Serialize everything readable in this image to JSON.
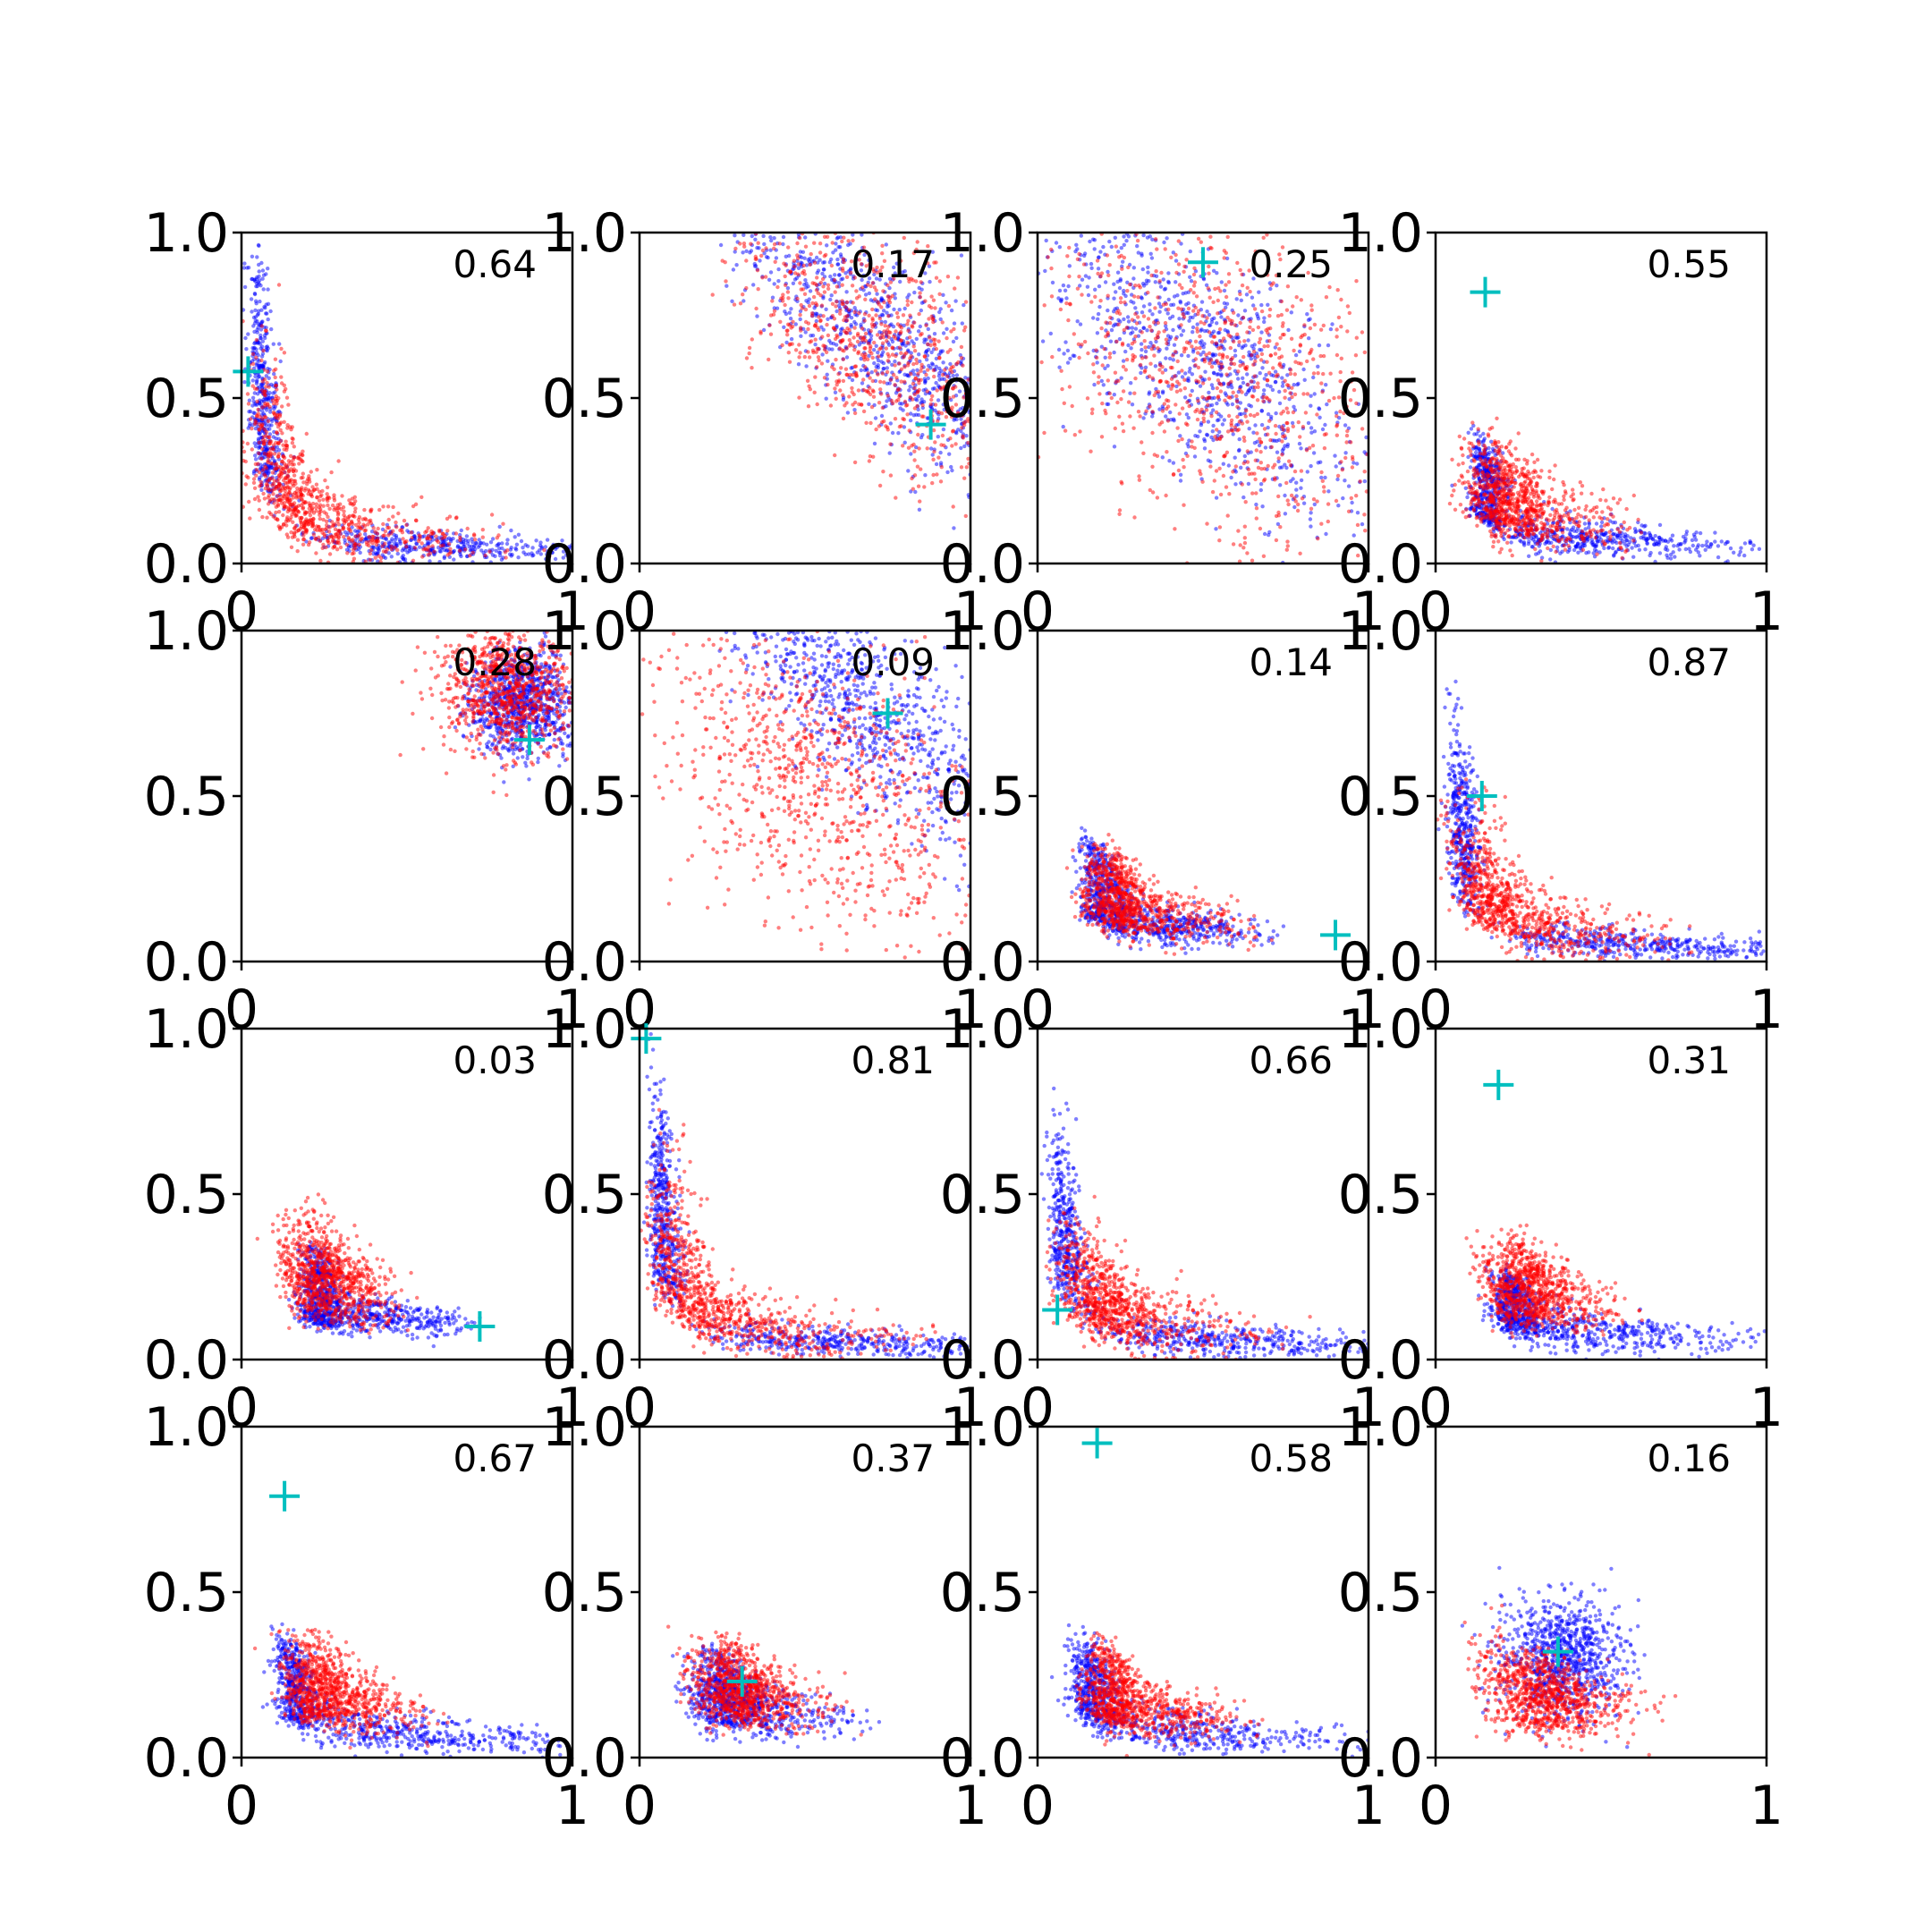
{
  "figure": {
    "layout": "4x4 grid of scatter subplots",
    "rows": 4,
    "cols": 4
  },
  "colors": {
    "series_blue": "#0000ff",
    "series_red": "#ff0000",
    "marker": "#00bfbf",
    "axes": "#000000",
    "background": "#ffffff"
  },
  "chart_data": [
    {
      "type": "scatter",
      "annotation": "0.64",
      "marker": [
        0.02,
        0.58
      ],
      "blue": {
        "kind": "L",
        "cx": 0.03,
        "cy": 0.03,
        "w": 0.05
      },
      "red": {
        "kind": "L",
        "cx": 0.05,
        "cy": 0.05,
        "w": 0.12
      },
      "xlim": [
        0,
        1
      ],
      "ylim": [
        0,
        1
      ],
      "xticks": [
        "0",
        "1"
      ],
      "yticks": [
        "0.0",
        "0.5",
        "1.0"
      ],
      "grid": false
    },
    {
      "type": "scatter",
      "annotation": "0.17",
      "marker": [
        0.88,
        0.42
      ],
      "blue": {
        "kind": "diag",
        "cx": 0.7,
        "cy": 0.7,
        "w": 0.12
      },
      "red": {
        "kind": "diag",
        "cx": 0.75,
        "cy": 0.65,
        "w": 0.16
      },
      "xlim": [
        0,
        1
      ],
      "ylim": [
        0,
        1
      ],
      "xticks": [
        "0",
        "1"
      ],
      "yticks": [
        "0.0",
        "0.5",
        "1.0"
      ],
      "grid": false
    },
    {
      "type": "scatter",
      "annotation": "0.25",
      "marker": [
        0.5,
        0.91
      ],
      "blue": {
        "kind": "diag",
        "cx": 0.5,
        "cy": 0.62,
        "w": 0.16
      },
      "red": {
        "kind": "diag",
        "cx": 0.55,
        "cy": 0.55,
        "w": 0.24
      },
      "xlim": [
        0,
        1
      ],
      "ylim": [
        0,
        1
      ],
      "xticks": [
        "0",
        "1"
      ],
      "yticks": [
        "0.0",
        "0.5",
        "1.0"
      ],
      "grid": false
    },
    {
      "type": "scatter",
      "annotation": "0.55",
      "marker": [
        0.15,
        0.82
      ],
      "blue": {
        "kind": "L",
        "cx": 0.12,
        "cy": 0.05,
        "w": 0.06
      },
      "red": {
        "kind": "L",
        "cx": 0.14,
        "cy": 0.1,
        "w": 0.14
      },
      "xlim": [
        0,
        1
      ],
      "ylim": [
        0,
        1
      ],
      "xticks": [
        "0",
        "1"
      ],
      "yticks": [
        "0.0",
        "0.5",
        "1.0"
      ],
      "grid": false
    },
    {
      "type": "scatter",
      "annotation": "0.28",
      "marker": [
        0.87,
        0.67
      ],
      "blue": {
        "kind": "blob",
        "cx": 0.85,
        "cy": 0.78,
        "w": 0.08
      },
      "red": {
        "kind": "blob",
        "cx": 0.8,
        "cy": 0.82,
        "w": 0.1
      },
      "xlim": [
        0,
        1
      ],
      "ylim": [
        0,
        1
      ],
      "xticks": [
        "0",
        "1"
      ],
      "yticks": [
        "0.0",
        "0.5",
        "1.0"
      ],
      "grid": false
    },
    {
      "type": "scatter",
      "annotation": "0.09",
      "marker": [
        0.75,
        0.75
      ],
      "blue": {
        "kind": "diag",
        "cx": 0.65,
        "cy": 0.8,
        "w": 0.12
      },
      "red": {
        "kind": "diag",
        "cx": 0.55,
        "cy": 0.55,
        "w": 0.22
      },
      "xlim": [
        0,
        1
      ],
      "ylim": [
        0,
        1
      ],
      "xticks": [
        "0",
        "1"
      ],
      "yticks": [
        "0.0",
        "0.5",
        "1.0"
      ],
      "grid": false
    },
    {
      "type": "scatter",
      "annotation": "0.14",
      "marker": [
        0.9,
        0.08
      ],
      "blue": {
        "kind": "L",
        "cx": 0.15,
        "cy": 0.08,
        "w": 0.07
      },
      "red": {
        "kind": "L",
        "cx": 0.18,
        "cy": 0.1,
        "w": 0.1
      },
      "xlim": [
        0,
        1
      ],
      "ylim": [
        0,
        1
      ],
      "xticks": [
        "0",
        "1"
      ],
      "yticks": [
        "0.0",
        "0.5",
        "1.0"
      ],
      "grid": false
    },
    {
      "type": "scatter",
      "annotation": "0.87",
      "marker": [
        0.14,
        0.5
      ],
      "blue": {
        "kind": "L",
        "cx": 0.05,
        "cy": 0.03,
        "w": 0.05
      },
      "red": {
        "kind": "L",
        "cx": 0.08,
        "cy": 0.06,
        "w": 0.13
      },
      "xlim": [
        0,
        1
      ],
      "ylim": [
        0,
        1
      ],
      "xticks": [
        "0",
        "1"
      ],
      "yticks": [
        "0.0",
        "0.5",
        "1.0"
      ],
      "grid": false
    },
    {
      "type": "scatter",
      "annotation": "0.03",
      "marker": [
        0.72,
        0.1
      ],
      "blue": {
        "kind": "L",
        "cx": 0.2,
        "cy": 0.1,
        "w": 0.06
      },
      "red": {
        "kind": "L",
        "cx": 0.18,
        "cy": 0.18,
        "w": 0.14
      },
      "xlim": [
        0,
        1
      ],
      "ylim": [
        0,
        1
      ],
      "xticks": [
        "0",
        "1"
      ],
      "yticks": [
        "0.0",
        "0.5",
        "1.0"
      ],
      "grid": false
    },
    {
      "type": "scatter",
      "annotation": "0.81",
      "marker": [
        0.02,
        0.97
      ],
      "blue": {
        "kind": "L",
        "cx": 0.04,
        "cy": 0.03,
        "w": 0.05
      },
      "red": {
        "kind": "L",
        "cx": 0.06,
        "cy": 0.05,
        "w": 0.12
      },
      "xlim": [
        0,
        1
      ],
      "ylim": [
        0,
        1
      ],
      "xticks": [
        "0",
        "1"
      ],
      "yticks": [
        "0.0",
        "0.5",
        "1.0"
      ],
      "grid": false
    },
    {
      "type": "scatter",
      "annotation": "0.66",
      "marker": [
        0.06,
        0.15
      ],
      "blue": {
        "kind": "L",
        "cx": 0.05,
        "cy": 0.03,
        "w": 0.06
      },
      "red": {
        "kind": "L",
        "cx": 0.1,
        "cy": 0.06,
        "w": 0.14
      },
      "xlim": [
        0,
        1
      ],
      "ylim": [
        0,
        1
      ],
      "xticks": [
        "0",
        "1"
      ],
      "yticks": [
        "0.0",
        "0.5",
        "1.0"
      ],
      "grid": false
    },
    {
      "type": "scatter",
      "annotation": "0.31",
      "marker": [
        0.19,
        0.83
      ],
      "blue": {
        "kind": "L",
        "cx": 0.2,
        "cy": 0.05,
        "w": 0.07
      },
      "red": {
        "kind": "L",
        "cx": 0.22,
        "cy": 0.15,
        "w": 0.12
      },
      "xlim": [
        0,
        1
      ],
      "ylim": [
        0,
        1
      ],
      "xticks": [
        "0",
        "1"
      ],
      "yticks": [
        "0.0",
        "0.5",
        "1.0"
      ],
      "grid": false
    },
    {
      "type": "scatter",
      "annotation": "0.67",
      "marker": [
        0.13,
        0.79
      ],
      "blue": {
        "kind": "L",
        "cx": 0.12,
        "cy": 0.04,
        "w": 0.07
      },
      "red": {
        "kind": "L",
        "cx": 0.18,
        "cy": 0.12,
        "w": 0.12
      },
      "xlim": [
        0,
        1
      ],
      "ylim": [
        0,
        1
      ],
      "xticks": [
        "0",
        "1"
      ],
      "yticks": [
        "0.0",
        "0.5",
        "1.0"
      ],
      "grid": false
    },
    {
      "type": "scatter",
      "annotation": "0.37",
      "marker": [
        0.31,
        0.23
      ],
      "blue": {
        "kind": "L",
        "cx": 0.2,
        "cy": 0.1,
        "w": 0.1
      },
      "red": {
        "kind": "L",
        "cx": 0.24,
        "cy": 0.14,
        "w": 0.12
      },
      "xlim": [
        0,
        1
      ],
      "ylim": [
        0,
        1
      ],
      "xticks": [
        "0",
        "1"
      ],
      "yticks": [
        "0.0",
        "0.5",
        "1.0"
      ],
      "grid": false
    },
    {
      "type": "scatter",
      "annotation": "0.58",
      "marker": [
        0.18,
        0.95
      ],
      "blue": {
        "kind": "L",
        "cx": 0.12,
        "cy": 0.04,
        "w": 0.08
      },
      "red": {
        "kind": "L",
        "cx": 0.18,
        "cy": 0.1,
        "w": 0.09
      },
      "xlim": [
        0,
        1
      ],
      "ylim": [
        0,
        1
      ],
      "xticks": [
        "0",
        "1"
      ],
      "yticks": [
        "0.0",
        "0.5",
        "1.0"
      ],
      "grid": false
    },
    {
      "type": "scatter",
      "annotation": "0.16",
      "marker": [
        0.37,
        0.32
      ],
      "blue": {
        "kind": "blob",
        "cx": 0.38,
        "cy": 0.3,
        "w": 0.09
      },
      "red": {
        "kind": "L",
        "cx": 0.25,
        "cy": 0.12,
        "w": 0.16
      },
      "xlim": [
        0,
        1
      ],
      "ylim": [
        0,
        1
      ],
      "xticks": [
        "0",
        "1"
      ],
      "yticks": [
        "0.0",
        "0.5",
        "1.0"
      ],
      "grid": false
    }
  ]
}
